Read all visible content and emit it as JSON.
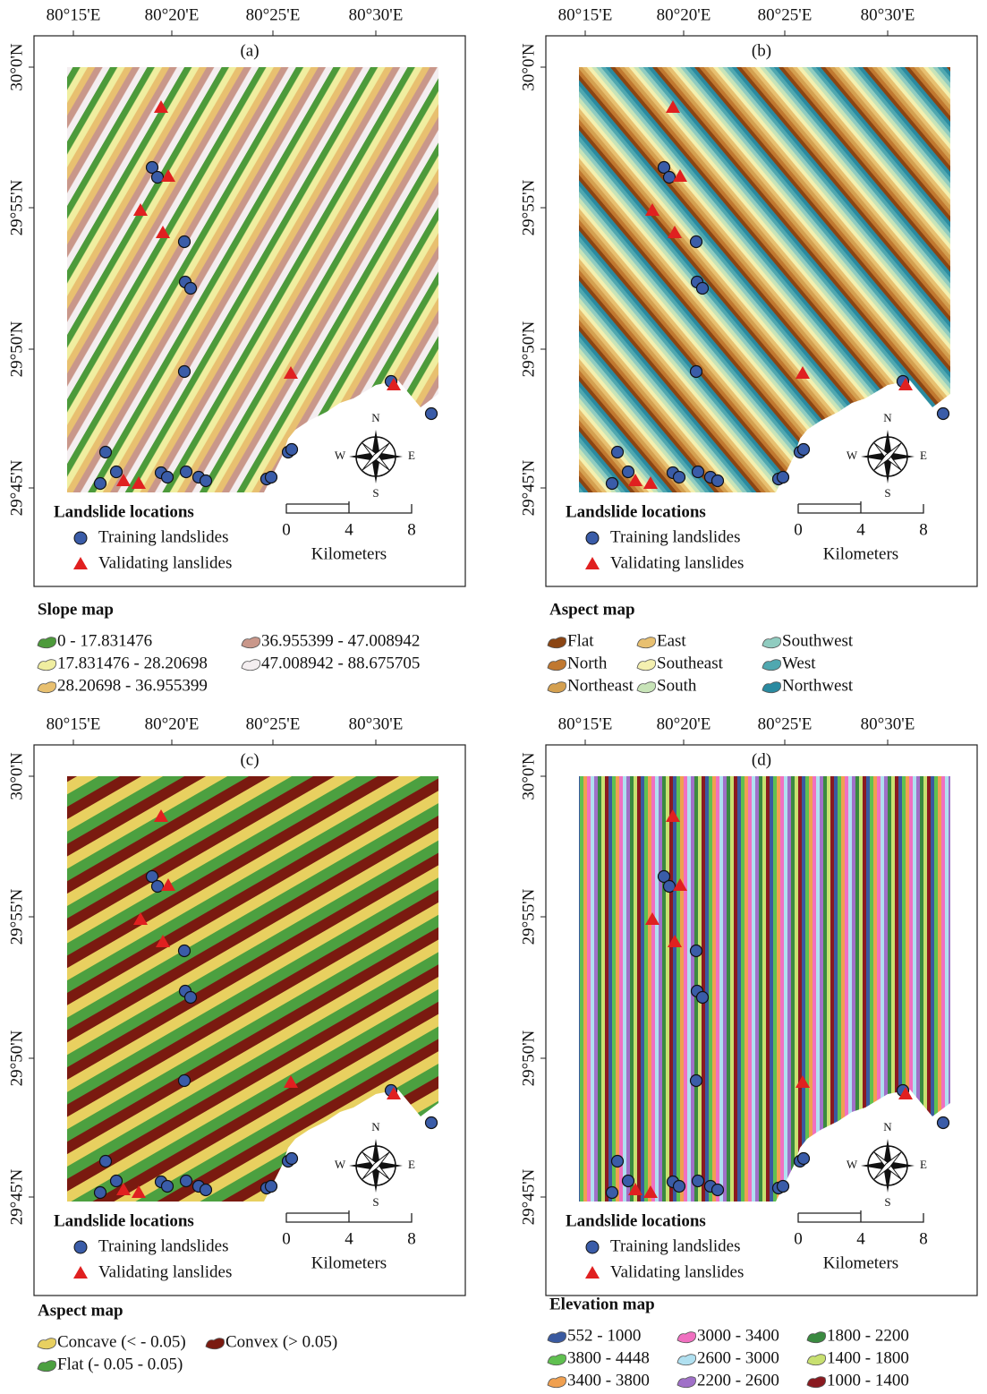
{
  "panels": [
    {
      "label": "(a)",
      "x_ticks": [
        "80°15'E",
        "80°20'E",
        "80°25'E",
        "80°30'E"
      ],
      "y_ticks": [
        "30°0'N",
        "29°55'N",
        "29°50'N",
        "29°45'N"
      ],
      "legend_title": "Landslide locations",
      "legend_items": [
        "Training landslides",
        "Validating lanslides"
      ],
      "scale_labels": [
        "0",
        "4",
        "8"
      ],
      "scale_unit": "Kilometers",
      "compass": [
        "N",
        "S",
        "W",
        "E"
      ],
      "map_title": "Slope map",
      "classes": [
        {
          "label": "0 - 17.831476",
          "color": "#4c9a3a"
        },
        {
          "label": "17.831476 - 28.20698",
          "color": "#f0eea0"
        },
        {
          "label": "28.20698 - 36.955399",
          "color": "#e8c070"
        },
        {
          "label": "36.955399 - 47.008942",
          "color": "#c9978a"
        },
        {
          "label": "47.008942 - 88.675705",
          "color": "#f4eef0"
        }
      ]
    },
    {
      "label": "(b)",
      "x_ticks": [
        "80°15'E",
        "80°20'E",
        "80°25'E",
        "80°30'E"
      ],
      "y_ticks": [
        "30°0'N",
        "29°55'N",
        "29°50'N",
        "29°45'N"
      ],
      "legend_title": "Landslide locations",
      "legend_items": [
        "Training landslides",
        "Validating lanslides"
      ],
      "scale_labels": [
        "0",
        "4",
        "8"
      ],
      "scale_unit": "Kilometers",
      "compass": [
        "N",
        "S",
        "W",
        "E"
      ],
      "map_title": "Aspect map",
      "classes": [
        {
          "label": "Flat",
          "color": "#8b4513"
        },
        {
          "label": "North",
          "color": "#c07830"
        },
        {
          "label": "Northeast",
          "color": "#d4a050"
        },
        {
          "label": "East",
          "color": "#e8c070"
        },
        {
          "label": "Southeast",
          "color": "#f4f0b0"
        },
        {
          "label": "South",
          "color": "#c8e4b8"
        },
        {
          "label": "Southwest",
          "color": "#90ccc0"
        },
        {
          "label": "West",
          "color": "#50a8b0"
        },
        {
          "label": "Northwest",
          "color": "#2a8aa0"
        }
      ]
    },
    {
      "label": "(c)",
      "x_ticks": [
        "80°15'E",
        "80°20'E",
        "80°25'E",
        "80°30'E"
      ],
      "y_ticks": [
        "30°0'N",
        "29°55'N",
        "29°50'N",
        "29°45'N"
      ],
      "legend_title": "Landslide locations",
      "legend_items": [
        "Training landslides",
        "Validating lanslides"
      ],
      "scale_labels": [
        "0",
        "4",
        "8"
      ],
      "scale_unit": "Kilometers",
      "compass": [
        "N",
        "S",
        "W",
        "E"
      ],
      "map_title": "Aspect map",
      "classes": [
        {
          "label": "Concave (< - 0.05)",
          "color": "#e8d060"
        },
        {
          "label": "Flat (- 0.05 - 0.05)",
          "color": "#4ca040"
        },
        {
          "label": "Convex (> 0.05)",
          "color": "#7a1a10"
        }
      ]
    },
    {
      "label": "(d)",
      "x_ticks": [
        "80°15'E",
        "80°20'E",
        "80°25'E",
        "80°30'E"
      ],
      "y_ticks": [
        "30°0'N",
        "29°55'N",
        "29°50'N",
        "29°45'N"
      ],
      "legend_title": "Landslide locations",
      "legend_items": [
        "Training landslides",
        "Validating lanslides"
      ],
      "scale_labels": [
        "0",
        "4",
        "8"
      ],
      "scale_unit": "Kilometers",
      "compass": [
        "N",
        "S",
        "W",
        "E"
      ],
      "map_title": "Elevation map",
      "classes": [
        {
          "label": "552 - 1000",
          "color": "#3a5aa0"
        },
        {
          "label": "3800 - 4448",
          "color": "#60c050"
        },
        {
          "label": "3400 - 3800",
          "color": "#f0a050"
        },
        {
          "label": "3000 - 3400",
          "color": "#f070c0"
        },
        {
          "label": "2600 - 3000",
          "color": "#b0e0f0"
        },
        {
          "label": "2200 - 2600",
          "color": "#a070c8"
        },
        {
          "label": "1800 - 2200",
          "color": "#3a8a40"
        },
        {
          "label": "1400 - 1800",
          "color": "#c8e070"
        },
        {
          "label": "1000 - 1400",
          "color": "#8a1a20"
        }
      ]
    }
  ]
}
